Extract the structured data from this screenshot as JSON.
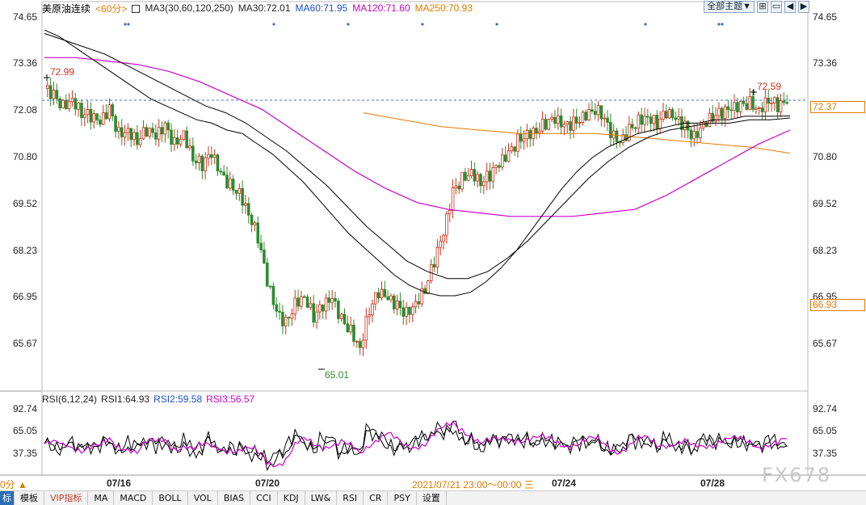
{
  "header": {
    "symbol": "美原油连续",
    "period": "<60分>",
    "ma_label": "MA3(30,60,120,250)",
    "ma30": "MA30:72.01",
    "ma60": "MA60:71.95",
    "ma120": "MA120:71.60",
    "ma250": "MA250:70.93",
    "theme_button": "全部主题▼"
  },
  "rsi_header": {
    "label": "RSI(6,12,24)",
    "rsi1": "RSI1:64.93",
    "rsi2": "RSI2:59.58",
    "rsi3": "RSI3:56.57"
  },
  "price_axis": {
    "right": [
      "74.65",
      "73.36",
      "72.08",
      "70.80",
      "69.52",
      "68.23",
      "66.95",
      "65.67"
    ],
    "left": [
      "74.65",
      "73.36",
      "72.08",
      "70.80",
      "69.52",
      "68.23",
      "66.95",
      "65.67"
    ]
  },
  "rsi_axis": [
    "92.74",
    "65.05",
    "37.35"
  ],
  "tags": {
    "last": "72.37",
    "cursor": "66.93"
  },
  "annotations": {
    "high_left": "72.99",
    "high_right": "72.59",
    "low": "65.01"
  },
  "dates": [
    "07/16",
    "07/20",
    "07/24",
    "07/28"
  ],
  "status": {
    "period": "0分 ▲",
    "cursor_time": "2021/07/21 23:00～00:00 三"
  },
  "watermark": "FX678",
  "tabs": [
    "标",
    "模板",
    "VIP指标",
    "MA",
    "MACD",
    "BOLL",
    "VOL",
    "BIAS",
    "CCI",
    "KDJ",
    "LW&",
    "RSI",
    "CR",
    "PSY",
    "设置"
  ],
  "colors": {
    "up": "#d0301c",
    "down": "#2e8b2e",
    "ma30": "#000000",
    "ma60": "#000000",
    "ma120": "#cc00cc",
    "ma250": "#e07a00",
    "rsi1": "#000000",
    "rsi2": "#000000",
    "rsi3": "#cc00cc"
  },
  "chart_data": {
    "type": "candlestick",
    "y_range": [
      64.8,
      74.8
    ],
    "close_series": [
      72.8,
      72.6,
      72.3,
      72.5,
      72.1,
      72.0,
      71.8,
      72.2,
      71.5,
      71.6,
      71.3,
      71.6,
      71.4,
      71.7,
      71.2,
      71.5,
      70.8,
      70.6,
      70.9,
      70.3,
      70.0,
      69.8,
      69.2,
      68.5,
      67.2,
      66.3,
      66.0,
      66.6,
      66.8,
      66.2,
      66.5,
      66.7,
      66.1,
      65.8,
      65.3,
      66.4,
      66.9,
      66.7,
      66.5,
      66.3,
      66.6,
      67.0,
      67.8,
      68.6,
      69.8,
      70.2,
      70.4,
      70.1,
      70.3,
      70.6,
      70.9,
      71.3,
      71.5,
      71.6,
      71.8,
      71.9,
      71.7,
      71.8,
      72.0,
      72.2,
      72.1,
      71.5,
      71.2,
      71.6,
      71.9,
      72.0,
      71.8,
      72.1,
      71.9,
      71.7,
      71.4,
      71.8,
      72.0,
      72.1,
      72.2,
      72.3,
      72.4,
      72.2,
      72.5,
      72.3,
      72.37
    ],
    "ma30": [
      74.5,
      74.3,
      74.0,
      73.7,
      73.4,
      73.1,
      72.8,
      72.5,
      72.3,
      72.1,
      71.9,
      71.8,
      71.6,
      71.5,
      71.2,
      70.9,
      70.5,
      70.1,
      69.6,
      69.1,
      68.6,
      68.2,
      67.8,
      67.4,
      67.1,
      66.9,
      66.8,
      66.8,
      66.9,
      67.2,
      67.6,
      68.1,
      68.7,
      69.3,
      69.9,
      70.4,
      70.8,
      71.1,
      71.3,
      71.5,
      71.6,
      71.7,
      71.8,
      71.8,
      71.9,
      71.9,
      72.0,
      72.0,
      72.0,
      72.01
    ],
    "ma60": [
      74.4,
      74.2,
      74.0,
      73.8,
      73.5,
      73.2,
      72.9,
      72.6,
      72.3,
      72.1,
      71.8,
      71.4,
      71.0,
      70.5,
      70.0,
      69.4,
      68.8,
      68.3,
      67.8,
      67.5,
      67.3,
      67.3,
      67.5,
      67.9,
      68.4,
      69.0,
      69.6,
      70.2,
      70.7,
      71.1,
      71.4,
      71.6,
      71.7,
      71.8,
      71.8,
      71.9,
      71.9,
      71.95
    ],
    "ma120": [
      73.7,
      73.7,
      73.6,
      73.5,
      73.3,
      73.0,
      72.6,
      72.2,
      71.6,
      71.0,
      70.4,
      69.9,
      69.5,
      69.3,
      69.2,
      69.1,
      69.1,
      69.1,
      69.2,
      69.3,
      69.7,
      70.2,
      70.7,
      71.2,
      71.6
    ],
    "ma250": [
      72.1,
      71.9,
      71.7,
      71.6,
      71.5,
      71.5,
      71.5,
      71.4,
      71.3,
      71.2,
      71.1,
      70.93
    ]
  }
}
